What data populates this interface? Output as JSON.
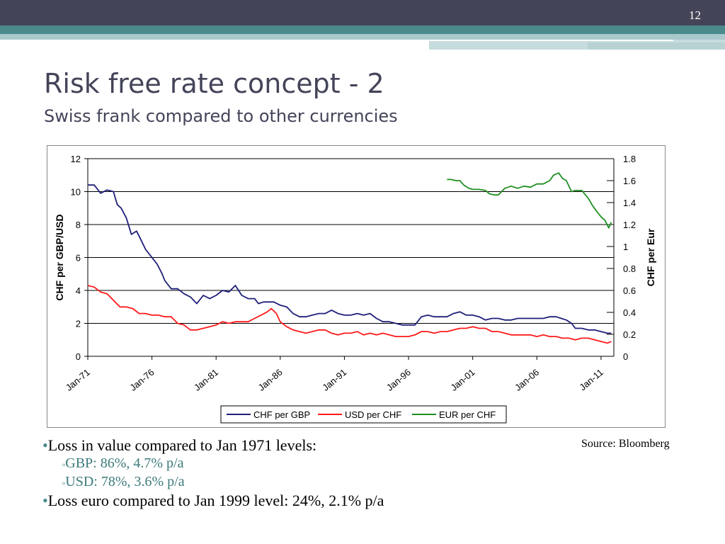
{
  "slide": {
    "number": "12",
    "title": "Risk free rate concept - 2",
    "subtitle": "Swiss frank compared to other currencies",
    "source": "Source: Bloomberg",
    "bullets": [
      {
        "level": 1,
        "text": "Loss in value compared to Jan 1971 levels:"
      },
      {
        "level": 2,
        "text": "GBP: 86%, 4.7% p/a"
      },
      {
        "level": 2,
        "text": "USD: 78%, 3.6% p/a"
      },
      {
        "level": 1,
        "text": "Loss euro compared to Jan 1999 level: 24%, 2.1% p/a"
      }
    ]
  },
  "chart_data": {
    "type": "line",
    "title": "",
    "ylabel": "CHF per GBP/USD",
    "y2label": "CHF per Eur",
    "ylim": [
      0,
      12
    ],
    "y2lim": [
      0,
      1.8
    ],
    "yticks": [
      "0",
      "2",
      "4",
      "6",
      "8",
      "10",
      "12"
    ],
    "y2ticks": [
      "0",
      "0.2",
      "0.4",
      "0.6",
      "0.8",
      "1",
      "1.2",
      "1.4",
      "1.6",
      "1.8"
    ],
    "xticks": [
      "Jan-71",
      "Jan-76",
      "Jan-81",
      "Jan-86",
      "Jan-91",
      "Jan-96",
      "Jan-01",
      "Jan-06",
      "Jan-11"
    ],
    "xlim": [
      1971.0,
      2012.0
    ],
    "grid": true,
    "legend_position": "bottom",
    "series": [
      {
        "name": "CHF per GBP",
        "axis": "left",
        "color": "#1f1f7a",
        "x": [
          1971.0,
          1971.5,
          1972.0,
          1972.5,
          1973.0,
          1973.3,
          1973.6,
          1974.0,
          1974.4,
          1974.8,
          1975.0,
          1975.5,
          1976.0,
          1976.4,
          1976.8,
          1977.0,
          1977.5,
          1978.0,
          1978.5,
          1979.0,
          1979.5,
          1980.0,
          1980.5,
          1981.0,
          1981.5,
          1982.0,
          1982.5,
          1983.0,
          1983.5,
          1984.0,
          1984.3,
          1984.7,
          1985.0,
          1985.5,
          1986.0,
          1986.5,
          1987.0,
          1987.5,
          1988.0,
          1988.5,
          1989.0,
          1989.5,
          1990.0,
          1990.5,
          1991.0,
          1991.5,
          1992.0,
          1992.5,
          1993.0,
          1993.5,
          1994.0,
          1994.5,
          1995.0,
          1995.5,
          1996.0,
          1996.5,
          1997.0,
          1997.5,
          1998.0,
          1998.5,
          1999.0,
          1999.5,
          2000.0,
          2000.5,
          2001.0,
          2001.5,
          2002.0,
          2002.5,
          2003.0,
          2003.5,
          2004.0,
          2004.5,
          2005.0,
          2005.5,
          2006.0,
          2006.5,
          2007.0,
          2007.5,
          2007.9,
          2008.3,
          2008.7,
          2009.0,
          2009.5,
          2010.0,
          2010.5,
          2011.0,
          2011.5,
          2011.8
        ],
        "y": [
          10.4,
          10.4,
          9.9,
          10.1,
          10.0,
          9.2,
          9.0,
          8.4,
          7.4,
          7.6,
          7.3,
          6.5,
          6.0,
          5.6,
          5.0,
          4.6,
          4.1,
          4.1,
          3.8,
          3.6,
          3.2,
          3.7,
          3.5,
          3.7,
          4.0,
          3.9,
          4.3,
          3.7,
          3.5,
          3.5,
          3.2,
          3.3,
          3.3,
          3.3,
          3.1,
          3.0,
          2.6,
          2.4,
          2.4,
          2.5,
          2.6,
          2.6,
          2.8,
          2.6,
          2.5,
          2.5,
          2.6,
          2.5,
          2.6,
          2.3,
          2.1,
          2.1,
          2.0,
          1.9,
          1.9,
          1.9,
          2.4,
          2.5,
          2.4,
          2.4,
          2.4,
          2.6,
          2.7,
          2.5,
          2.5,
          2.4,
          2.2,
          2.3,
          2.3,
          2.2,
          2.2,
          2.3,
          2.3,
          2.3,
          2.3,
          2.3,
          2.4,
          2.4,
          2.3,
          2.2,
          2.0,
          1.7,
          1.7,
          1.6,
          1.6,
          1.5,
          1.4,
          1.4
        ]
      },
      {
        "name": "USD per CHF",
        "axis": "left",
        "color": "#ff1a1a",
        "x": [
          1971.0,
          1971.5,
          1972.0,
          1972.5,
          1973.0,
          1973.5,
          1974.0,
          1974.5,
          1975.0,
          1975.5,
          1976.0,
          1976.5,
          1977.0,
          1977.5,
          1978.0,
          1978.5,
          1979.0,
          1979.5,
          1980.0,
          1980.5,
          1981.0,
          1981.5,
          1982.0,
          1982.5,
          1983.0,
          1983.5,
          1984.0,
          1984.5,
          1985.0,
          1985.3,
          1985.7,
          1986.0,
          1986.5,
          1987.0,
          1987.5,
          1988.0,
          1988.5,
          1989.0,
          1989.5,
          1990.0,
          1990.5,
          1991.0,
          1991.5,
          1992.0,
          1992.5,
          1993.0,
          1993.5,
          1994.0,
          1994.5,
          1995.0,
          1995.5,
          1996.0,
          1996.5,
          1997.0,
          1997.5,
          1998.0,
          1998.5,
          1999.0,
          1999.5,
          2000.0,
          2000.5,
          2001.0,
          2001.5,
          2002.0,
          2002.5,
          2003.0,
          2003.5,
          2004.0,
          2004.5,
          2005.0,
          2005.5,
          2006.0,
          2006.5,
          2007.0,
          2007.5,
          2008.0,
          2008.5,
          2009.0,
          2009.5,
          2010.0,
          2010.5,
          2011.0,
          2011.5,
          2011.8
        ],
        "y": [
          4.3,
          4.2,
          3.9,
          3.8,
          3.4,
          3.0,
          3.0,
          2.9,
          2.6,
          2.6,
          2.5,
          2.5,
          2.4,
          2.4,
          2.0,
          1.9,
          1.6,
          1.6,
          1.7,
          1.8,
          1.9,
          2.1,
          2.0,
          2.1,
          2.1,
          2.1,
          2.3,
          2.5,
          2.7,
          2.9,
          2.6,
          2.1,
          1.8,
          1.6,
          1.5,
          1.4,
          1.5,
          1.6,
          1.6,
          1.4,
          1.3,
          1.4,
          1.4,
          1.5,
          1.3,
          1.4,
          1.3,
          1.4,
          1.3,
          1.2,
          1.2,
          1.2,
          1.3,
          1.5,
          1.5,
          1.4,
          1.5,
          1.5,
          1.6,
          1.7,
          1.7,
          1.8,
          1.7,
          1.7,
          1.5,
          1.5,
          1.4,
          1.3,
          1.3,
          1.3,
          1.3,
          1.2,
          1.3,
          1.2,
          1.2,
          1.1,
          1.1,
          1.0,
          1.1,
          1.1,
          1.0,
          0.9,
          0.8,
          0.9
        ]
      },
      {
        "name": "EUR per CHF",
        "axis": "right",
        "color": "#1f8f1f",
        "x": [
          1999.0,
          1999.3,
          1999.7,
          2000.0,
          2000.3,
          2000.7,
          2001.0,
          2001.5,
          2002.0,
          2002.3,
          2002.7,
          2003.0,
          2003.5,
          2004.0,
          2004.5,
          2005.0,
          2005.5,
          2006.0,
          2006.5,
          2007.0,
          2007.3,
          2007.7,
          2008.0,
          2008.3,
          2008.7,
          2009.0,
          2009.5,
          2010.0,
          2010.3,
          2010.6,
          2011.0,
          2011.3,
          2011.6,
          2011.8
        ],
        "y": [
          1.61,
          1.61,
          1.6,
          1.6,
          1.56,
          1.53,
          1.52,
          1.52,
          1.51,
          1.48,
          1.47,
          1.47,
          1.53,
          1.55,
          1.53,
          1.55,
          1.54,
          1.57,
          1.57,
          1.6,
          1.65,
          1.67,
          1.62,
          1.6,
          1.5,
          1.51,
          1.51,
          1.44,
          1.38,
          1.33,
          1.27,
          1.24,
          1.17,
          1.22
        ]
      }
    ]
  }
}
